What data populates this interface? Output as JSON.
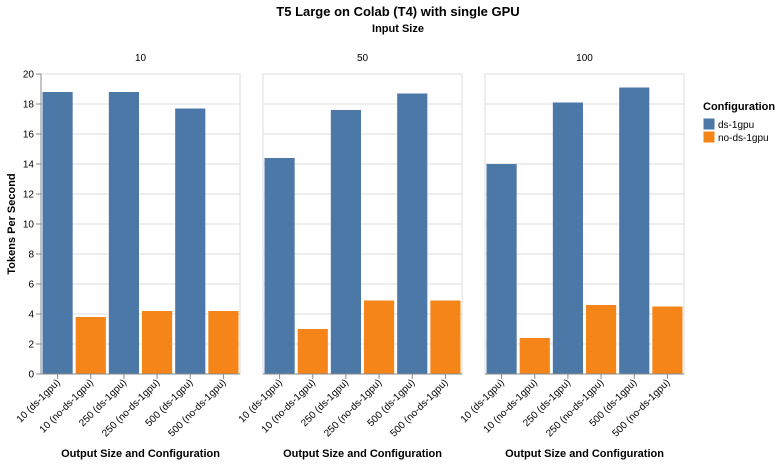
{
  "chart_data": {
    "type": "bar",
    "title": "T5 Large on Colab (T4) with single GPU",
    "subtitle": "Input Size",
    "xlabel": "Output Size and Configuration",
    "ylabel": "Tokens Per Second",
    "ylim": [
      0,
      20
    ],
    "yticks": [
      "0",
      "2",
      "4",
      "6",
      "8",
      "10",
      "12",
      "14",
      "16",
      "18",
      "20"
    ],
    "grid": true,
    "legend": {
      "title": "Configuration",
      "placement": "top-right",
      "entries": [
        {
          "label": "ds-1gpu",
          "color": "#4c78a8"
        },
        {
          "label": "no-ds-1gpu",
          "color": "#f58518"
        }
      ]
    },
    "categories": [
      "10 (ds-1gpu)",
      "10 (no-ds-1gpu)",
      "250 (ds-1gpu)",
      "250 (no-ds-1gpu)",
      "500 (ds-1gpu)",
      "500 (no-ds-1gpu)"
    ],
    "bar_configs": [
      "ds-1gpu",
      "no-ds-1gpu",
      "ds-1gpu",
      "no-ds-1gpu",
      "ds-1gpu",
      "no-ds-1gpu"
    ],
    "facets": [
      {
        "header": "10",
        "values": [
          18.8,
          3.8,
          18.8,
          4.2,
          17.7,
          4.2
        ]
      },
      {
        "header": "50",
        "values": [
          14.4,
          3.0,
          17.6,
          4.9,
          18.7,
          4.9
        ]
      },
      {
        "header": "100",
        "values": [
          14.0,
          2.4,
          18.1,
          4.6,
          19.1,
          4.5
        ]
      }
    ]
  }
}
